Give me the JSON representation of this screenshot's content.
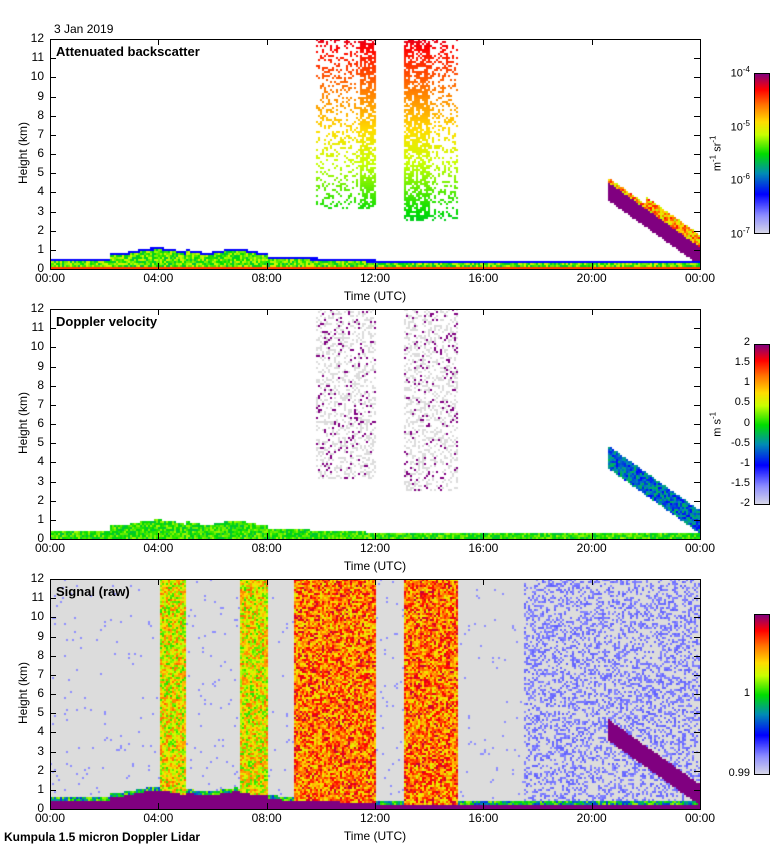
{
  "date": "3 Jan 2019",
  "footer": "Kumpula 1.5 micron Doppler Lidar",
  "chart_data": [
    {
      "type": "heatmap",
      "title": "Attenuated backscatter",
      "xlabel": "Time (UTC)",
      "ylabel": "Height (km)",
      "xticks": [
        "00:00",
        "04:00",
        "08:00",
        "12:00",
        "16:00",
        "20:00",
        "00:00"
      ],
      "yticks": [
        "0",
        "1",
        "2",
        "3",
        "4",
        "5",
        "6",
        "7",
        "8",
        "9",
        "10",
        "11",
        "12"
      ],
      "ylim": [
        0,
        12
      ],
      "xlim_hours": [
        0,
        24
      ],
      "colorbar": {
        "scale": "log",
        "range": [
          1e-07,
          0.0001
        ],
        "ticks": [
          "10-7",
          "10-6",
          "10-5",
          "10-4"
        ],
        "units": "m-1 sr-1"
      },
      "features": [
        {
          "desc": "boundary layer",
          "t": [
            0,
            24
          ],
          "h": [
            0,
            0.9
          ]
        },
        {
          "desc": "high cloud",
          "t": [
            9.8,
            12.0
          ],
          "h": [
            3.2,
            12
          ]
        },
        {
          "desc": "high cloud",
          "t": [
            13.0,
            15.0
          ],
          "h": [
            2.6,
            12
          ]
        },
        {
          "desc": "descending cloud",
          "t": [
            20.5,
            24
          ],
          "h": [
            0.5,
            4.5
          ]
        }
      ]
    },
    {
      "type": "heatmap",
      "title": "Doppler velocity",
      "xlabel": "Time (UTC)",
      "ylabel": "Height (km)",
      "xticks": [
        "00:00",
        "04:00",
        "08:00",
        "12:00",
        "16:00",
        "20:00",
        "00:00"
      ],
      "yticks": [
        "0",
        "1",
        "2",
        "3",
        "4",
        "5",
        "6",
        "7",
        "8",
        "9",
        "10",
        "11",
        "12"
      ],
      "ylim": [
        0,
        12
      ],
      "xlim_hours": [
        0,
        24
      ],
      "colorbar": {
        "scale": "linear",
        "range": [
          -2,
          2
        ],
        "ticks": [
          "2",
          "1.5",
          "1",
          "0.5",
          "0",
          "-0.5",
          "-1",
          "-1.5",
          "-2"
        ],
        "units": "m s-1"
      }
    },
    {
      "type": "heatmap",
      "title": "Signal (raw)",
      "xlabel": "Time (UTC)",
      "ylabel": "Height (km)",
      "xticks": [
        "00:00",
        "04:00",
        "08:00",
        "12:00",
        "16:00",
        "20:00",
        "00:00"
      ],
      "yticks": [
        "0",
        "1",
        "2",
        "3",
        "4",
        "5",
        "6",
        "7",
        "8",
        "9",
        "10",
        "11",
        "12"
      ],
      "ylim": [
        0,
        12
      ],
      "xlim_hours": [
        0,
        24
      ],
      "colorbar": {
        "scale": "linear",
        "range": [
          0.99,
          1.01
        ],
        "ticks": [
          "1",
          "0.99"
        ],
        "units": ""
      }
    }
  ]
}
